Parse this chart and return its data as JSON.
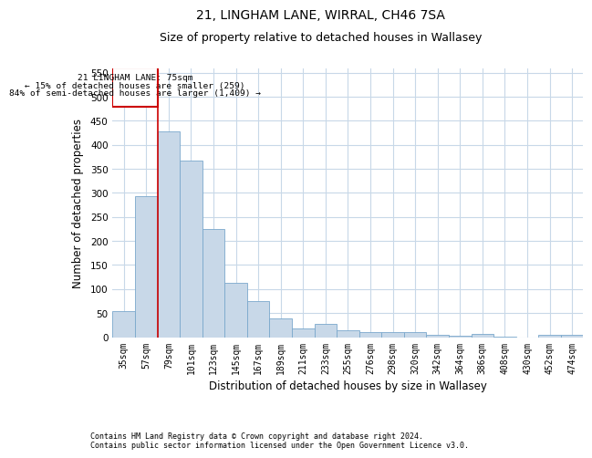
{
  "title": "21, LINGHAM LANE, WIRRAL, CH46 7SA",
  "subtitle": "Size of property relative to detached houses in Wallasey",
  "xlabel": "Distribution of detached houses by size in Wallasey",
  "ylabel": "Number of detached properties",
  "footer_line1": "Contains HM Land Registry data © Crown copyright and database right 2024.",
  "footer_line2": "Contains public sector information licensed under the Open Government Licence v3.0.",
  "categories": [
    "35sqm",
    "57sqm",
    "79sqm",
    "101sqm",
    "123sqm",
    "145sqm",
    "167sqm",
    "189sqm",
    "211sqm",
    "233sqm",
    "255sqm",
    "276sqm",
    "298sqm",
    "320sqm",
    "342sqm",
    "364sqm",
    "386sqm",
    "408sqm",
    "430sqm",
    "452sqm",
    "474sqm"
  ],
  "values": [
    55,
    293,
    428,
    367,
    225,
    113,
    75,
    38,
    18,
    27,
    15,
    10,
    10,
    10,
    5,
    3,
    6,
    1,
    0,
    5,
    4
  ],
  "bar_color": "#c8d8e8",
  "bar_edge_color": "#7aa8cc",
  "annotation_box_color": "#cc0000",
  "annotation_line_color": "#cc0000",
  "property_line_x": 2,
  "annotation_text_line1": "21 LINGHAM LANE: 75sqm",
  "annotation_text_line2": "← 15% of detached houses are smaller (259)",
  "annotation_text_line3": "84% of semi-detached houses are larger (1,409) →",
  "ylim": [
    0,
    560
  ],
  "yticks": [
    0,
    50,
    100,
    150,
    200,
    250,
    300,
    350,
    400,
    450,
    500,
    550
  ],
  "bg_color": "#ffffff",
  "grid_color": "#c8d8e8",
  "title_fontsize": 10,
  "subtitle_fontsize": 9,
  "xlabel_fontsize": 8.5,
  "ylabel_fontsize": 8.5
}
